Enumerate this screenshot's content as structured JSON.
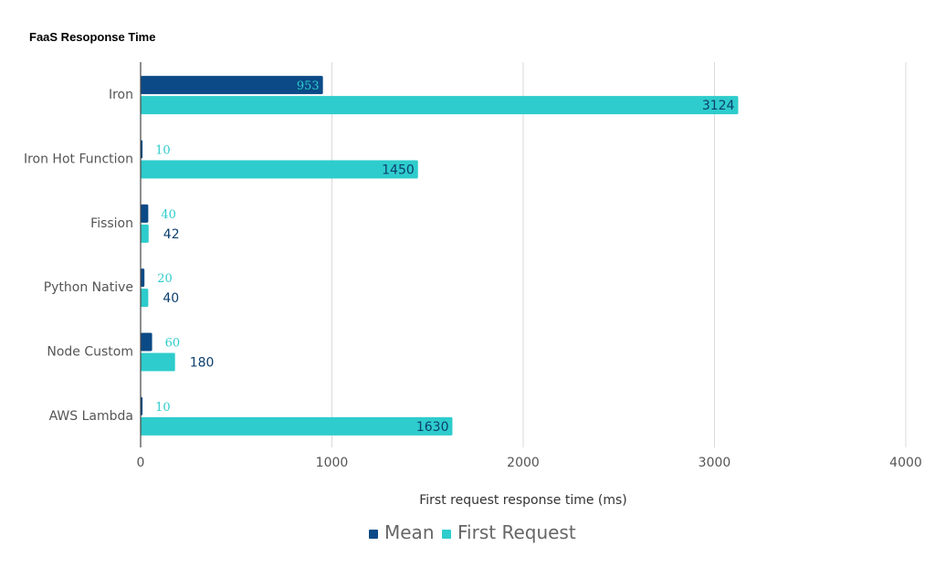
{
  "chart_data": {
    "type": "bar",
    "orientation": "horizontal",
    "title": "FaaS Resoponse Time",
    "xlabel": "First request response time (ms)",
    "ylabel": "",
    "xlim": [
      0,
      4000
    ],
    "xticks": [
      "0",
      "1000",
      "2000",
      "3000",
      "4000"
    ],
    "categories": [
      "Iron",
      "Iron Hot Function",
      "Fission",
      "Python Native",
      "Node Custom",
      "AWS Lambda"
    ],
    "series": [
      {
        "name": "Mean",
        "color": "#0b4a86",
        "values": [
          953,
          10,
          40,
          20,
          60,
          10
        ],
        "labels": [
          "953",
          "10",
          "40",
          "20",
          "60",
          "10"
        ]
      },
      {
        "name": "First Request",
        "color": "#2ecccc",
        "values": [
          3124,
          1450,
          42,
          40,
          180,
          1630
        ],
        "labels": [
          "3124",
          "1450",
          "42",
          "40",
          "180",
          "1630"
        ]
      }
    ],
    "grid": true,
    "legend_position": "bottom"
  }
}
